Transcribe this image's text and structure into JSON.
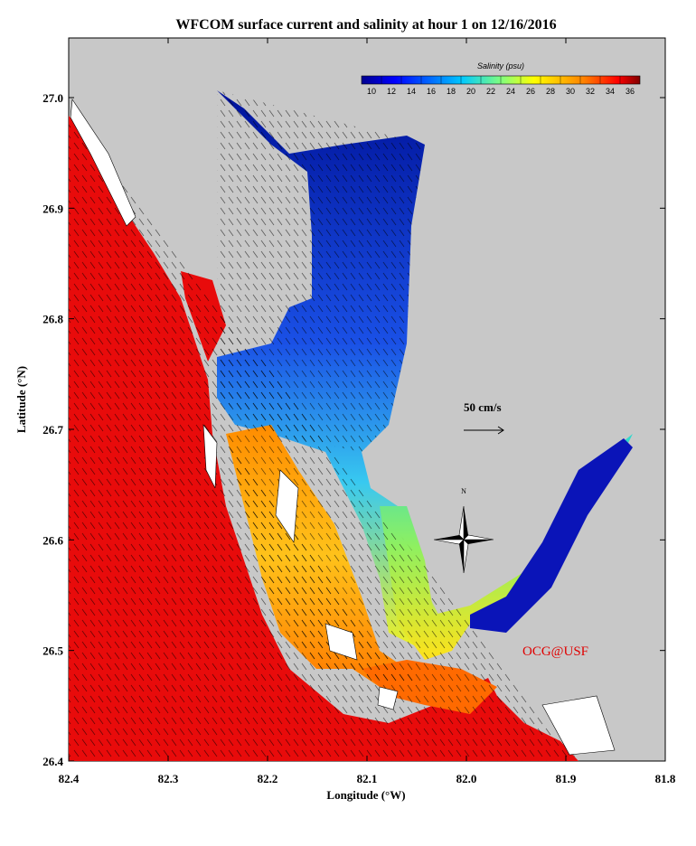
{
  "title": "WFCOM surface current and salinity at hour 1 on 12/16/2016",
  "x_label": "Longitude (°W)",
  "y_label": "Latitude (°N)",
  "xticks": [
    "82.4",
    "82.3",
    "82.2",
    "82.1",
    "82.0",
    "81.9",
    "81.8"
  ],
  "yticks": [
    "27.0",
    "26.9",
    "26.8",
    "26.7",
    "26.6",
    "26.5",
    "26.4"
  ],
  "colorbar": {
    "title": "Salinity (psu)",
    "ticks": [
      10,
      12,
      14,
      16,
      18,
      20,
      22,
      24,
      26,
      28,
      30,
      32,
      34,
      36
    ]
  },
  "scale_label": "50 cm/s",
  "north_label": "N",
  "credit": "OCG@USF"
}
